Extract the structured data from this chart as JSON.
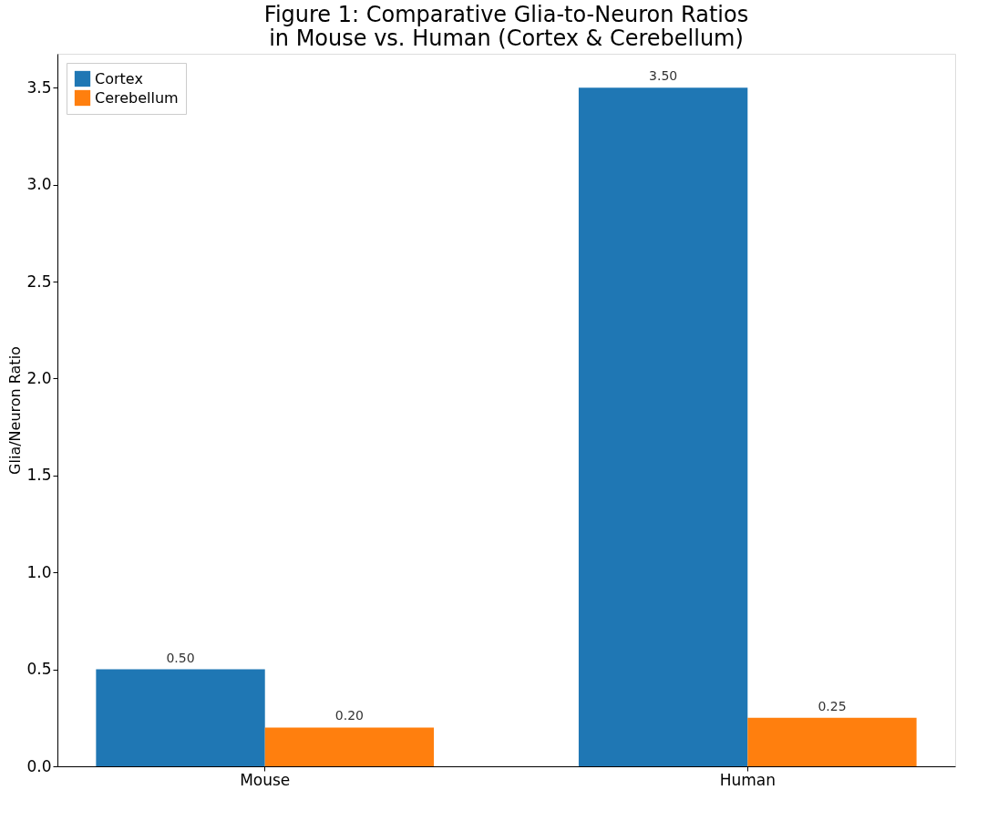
{
  "chart_data": {
    "type": "bar",
    "title": "Figure 1: Comparative Glia-to-Neuron Ratios\nin Mouse vs. Human (Cortex & Cerebellum)",
    "ylabel": "Glia/Neuron Ratio",
    "categories": [
      "Mouse",
      "Human"
    ],
    "series": [
      {
        "name": "Cortex",
        "color": "#1f77b4",
        "values": [
          0.5,
          3.5
        ],
        "value_labels": [
          "0.50",
          "3.50"
        ]
      },
      {
        "name": "Cerebellum",
        "color": "#ff7f0e",
        "values": [
          0.2,
          0.25
        ],
        "value_labels": [
          "0.20",
          "0.25"
        ]
      }
    ],
    "ylim": [
      0,
      3.675
    ],
    "yticks": [
      {
        "value": 0,
        "label": "0.0"
      },
      {
        "value": 0.5,
        "label": "0.5"
      },
      {
        "value": 1,
        "label": "1.0"
      },
      {
        "value": 1.5,
        "label": "1.5"
      },
      {
        "value": 2,
        "label": "2.0"
      },
      {
        "value": 2.5,
        "label": "2.5"
      },
      {
        "value": 3,
        "label": "3.0"
      },
      {
        "value": 3.5,
        "label": "3.5"
      }
    ],
    "grid": false,
    "legend": "top left"
  }
}
